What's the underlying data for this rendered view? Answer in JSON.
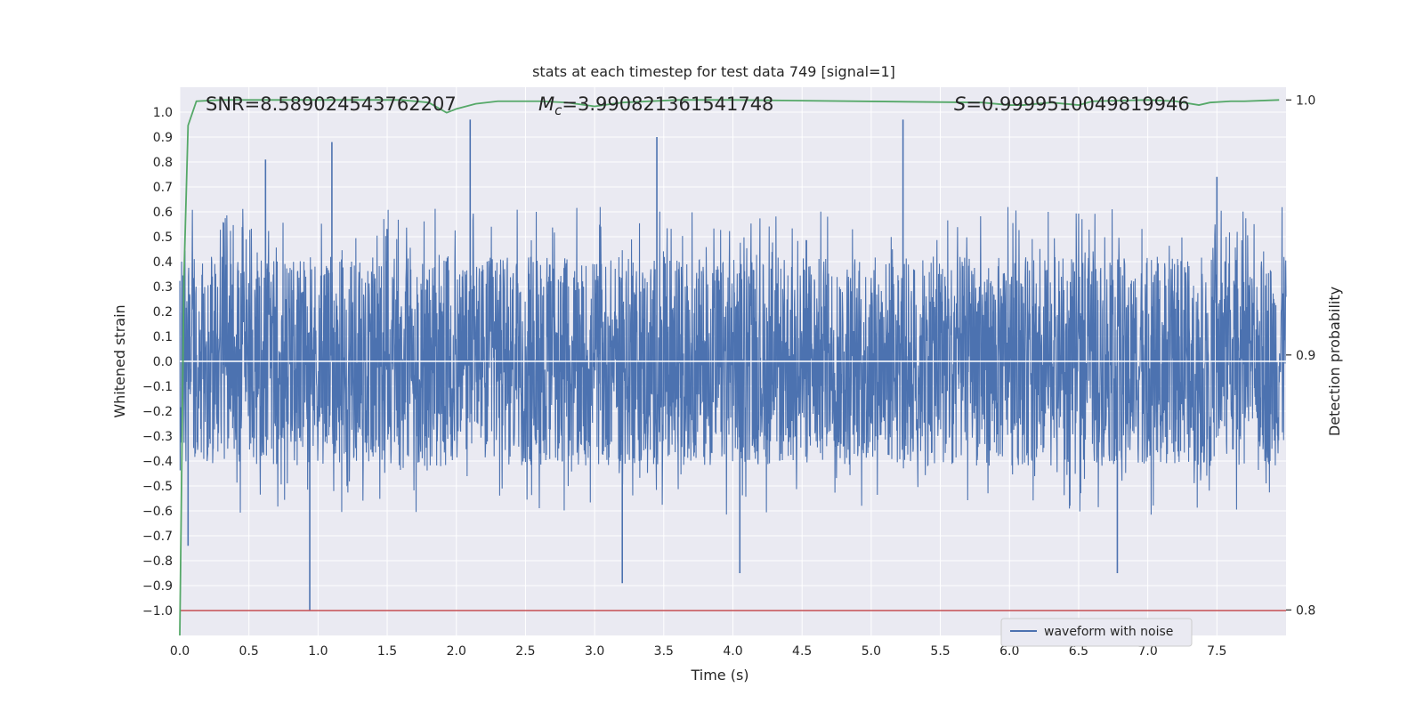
{
  "chart_data": {
    "type": "line",
    "title": "stats at each timestep for test data 749 [signal=1]",
    "xlabel": "Time (s)",
    "ylabel": "Whitened strain",
    "y2label": "Detection probability",
    "xlim": [
      0.0,
      8.0
    ],
    "ylim": [
      -1.1,
      1.1
    ],
    "y2lim": [
      0.79,
      1.005
    ],
    "xticks": [
      "0.0",
      "0.5",
      "1.0",
      "1.5",
      "2.0",
      "2.5",
      "3.0",
      "3.5",
      "4.0",
      "4.5",
      "5.0",
      "5.5",
      "6.0",
      "6.5",
      "7.0",
      "7.5"
    ],
    "yticks": [
      "1.0",
      "0.9",
      "0.8",
      "0.7",
      "0.6",
      "0.5",
      "0.4",
      "0.3",
      "0.2",
      "0.1",
      "0.0",
      "−0.1",
      "−0.2",
      "−0.3",
      "−0.4",
      "−0.5",
      "−0.6",
      "−0.7",
      "−0.8",
      "−0.9",
      "−1.0"
    ],
    "y2ticks": [
      "1.0",
      "0.9",
      "0.8"
    ],
    "stats": {
      "snr_label": "SNR=8.589024543762207",
      "mc_symbol": "M",
      "mc_sub": "c",
      "mc_value": "=3.990821361541748",
      "s_symbol": "S",
      "s_value": "=0.9999510049819946"
    },
    "grid": true,
    "legend_position": "lower-right",
    "series": [
      {
        "name": "waveform with noise",
        "color": "#4c72b0",
        "axis": "left",
        "description": "noisy whitened strain, approx. uniform band between -0.65 and 0.65 with spikes to about ±1.0",
        "spikes_x": [
          0.94,
          0.06,
          0.62,
          1.1,
          2.1,
          3.45,
          3.2,
          4.05,
          5.23,
          6.78,
          7.5
        ],
        "spikes_y": [
          -1.0,
          -0.74,
          0.81,
          0.88,
          0.97,
          0.9,
          -0.89,
          -0.85,
          0.97,
          -0.85,
          0.74
        ]
      },
      {
        "name": "",
        "color": "#55a868",
        "axis": "right",
        "x": [
          0.0,
          0.03,
          0.06,
          0.12,
          0.3,
          1.6,
          1.8,
          1.93,
          2.0,
          2.07,
          2.14,
          2.3,
          2.6,
          2.8,
          3.0,
          3.2,
          3.6,
          4.0,
          5.8,
          6.0,
          6.1,
          6.3,
          6.5,
          6.6,
          7.0,
          7.2,
          7.37,
          7.45,
          7.6,
          7.7,
          7.95
        ],
        "y": [
          0.79,
          0.93,
          0.99,
          0.9995,
          1.0,
          1.0,
          0.999,
          0.995,
          0.9965,
          0.9975,
          0.9985,
          0.9995,
          0.9995,
          0.999,
          0.9975,
          0.999,
          1.0,
          1.0,
          0.999,
          0.998,
          0.998,
          0.999,
          0.998,
          0.9995,
          1.0,
          0.9995,
          0.998,
          0.999,
          0.9995,
          0.9995,
          1.0
        ]
      },
      {
        "name": "",
        "color": "#c44e52",
        "axis": "left",
        "x": [
          0.0,
          8.0
        ],
        "y": [
          -1.0,
          -1.0
        ]
      }
    ],
    "colors": {
      "plot_bg": "#eaeaf2",
      "grid": "#ffffff",
      "waveform": "#4c72b0",
      "probability": "#55a868",
      "threshold": "#c44e52"
    }
  }
}
